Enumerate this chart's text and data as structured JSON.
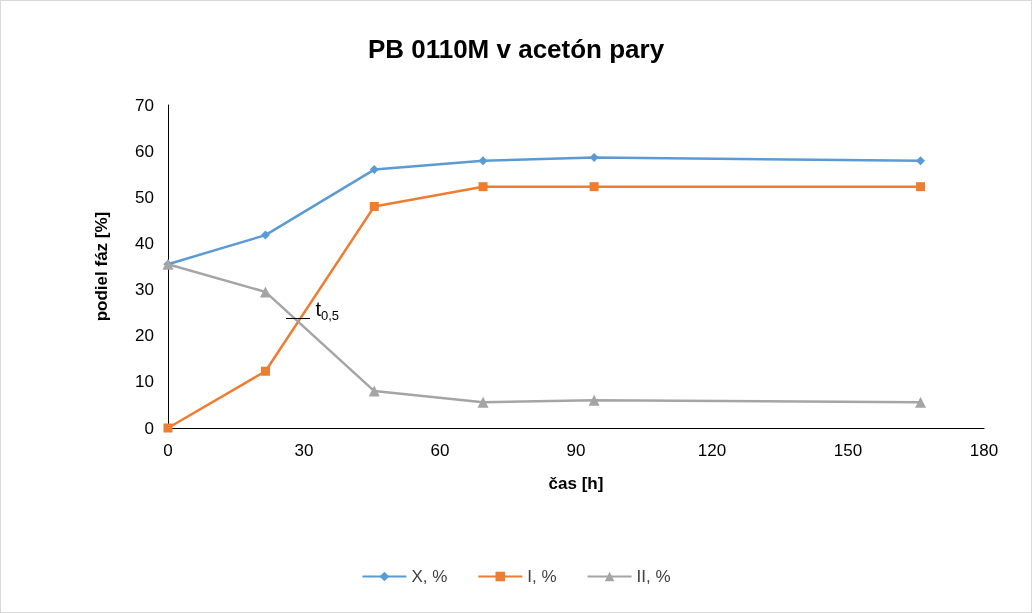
{
  "chart_data": {
    "type": "line",
    "title": "PB 0110M v acetón pary",
    "xlabel": "čas [h]",
    "ylabel": "podiel fáz [%]",
    "x": [
      0,
      21.5,
      45.5,
      69.5,
      94,
      166
    ],
    "series": [
      {
        "name": "X, %",
        "color": "#5b9bd5",
        "marker": "diamond",
        "values": [
          35.5,
          41.8,
          56,
          57.9,
          58.6,
          57.9
        ]
      },
      {
        "name": "I, %",
        "color": "#ed7d31",
        "marker": "square",
        "values": [
          0,
          12.3,
          48,
          52.3,
          52.3,
          52.3
        ]
      },
      {
        "name": "II, %",
        "color": "#a5a5a5",
        "marker": "triangle",
        "values": [
          35.5,
          29.5,
          8,
          5.6,
          6,
          5.6
        ]
      }
    ],
    "xlim": [
      0,
      180
    ],
    "xticks": [
      0,
      30,
      60,
      90,
      120,
      150,
      180
    ],
    "ylim": [
      0,
      70
    ],
    "yticks": [
      0,
      10,
      20,
      30,
      40,
      50,
      60,
      70
    ],
    "annotations": [
      {
        "text": "t$_{0,5}$",
        "x": 29,
        "y": 23.5
      }
    ],
    "grid": false,
    "legend": "bottom",
    "line_style": "solid"
  }
}
